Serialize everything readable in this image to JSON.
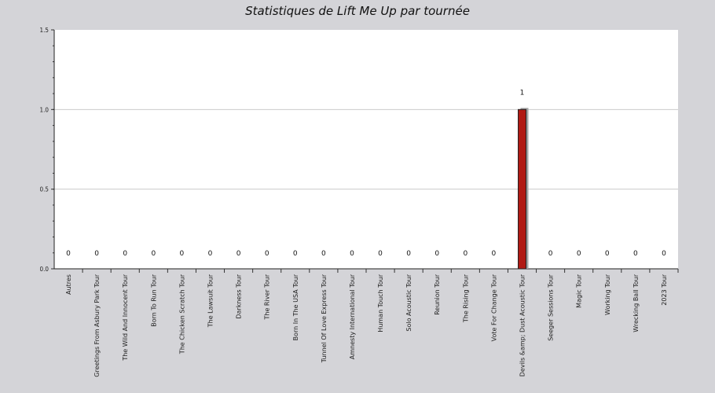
{
  "chart_data": {
    "type": "bar",
    "title": "Statistiques de Lift Me Up par tournée",
    "xlabel": "",
    "ylabel": "",
    "ylim": [
      0,
      1.5
    ],
    "yticks": [
      0.0,
      0.5,
      1.0,
      1.5
    ],
    "ytick_labels": [
      "0.0",
      "0.5",
      "1.0",
      "1.5"
    ],
    "grid": true,
    "categories": [
      "Autres",
      "Greetings From Asbury Park Tour",
      "The Wild And Innocent Tour",
      "Born To Run Tour",
      "The Chicken Scratch Tour",
      "The Lawsuit Tour",
      "Darkness Tour",
      "The River Tour",
      "Born In The USA Tour",
      "Tunnel Of Love Express Tour",
      "Amnesty International Tour",
      "Human Touch Tour",
      "Solo Acoustic Tour",
      "Reunion Tour",
      "The Rising Tour",
      "Vote For Change Tour",
      "Devils &amp; Dust Acoustic Tour",
      "Seeger Sessions Tour",
      "Magic Tour",
      "Working Tour",
      "Wrecking Ball Tour",
      "2023 Tour"
    ],
    "values": [
      0,
      0,
      0,
      0,
      0,
      0,
      0,
      0,
      0,
      0,
      0,
      0,
      0,
      0,
      0,
      0,
      1,
      0,
      0,
      0,
      0,
      0
    ],
    "value_labels": [
      "0",
      "0",
      "0",
      "0",
      "0",
      "0",
      "0",
      "0",
      "0",
      "0",
      "0",
      "0",
      "0",
      "0",
      "0",
      "0",
      "1",
      "0",
      "0",
      "0",
      "0",
      "0"
    ],
    "bar_color": "#b01a14",
    "bar_shadow_color": "#a0a0a0",
    "plot_background": "#ffffff",
    "page_background": "#d4d4d8",
    "grid_color": "#cccccc"
  }
}
